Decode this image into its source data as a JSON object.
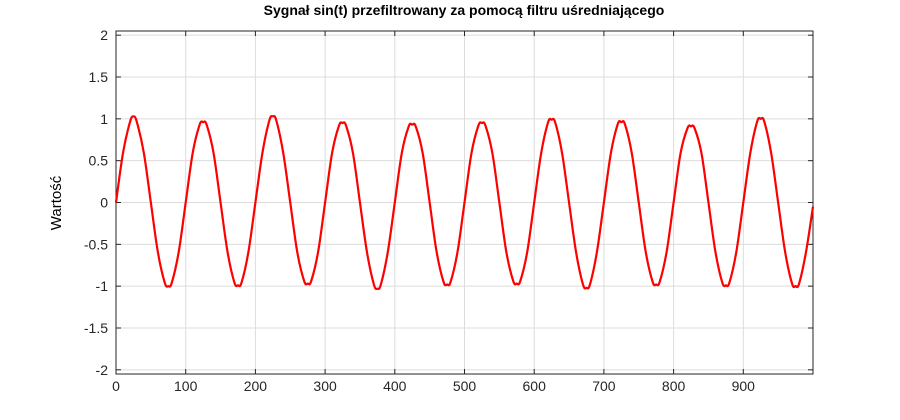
{
  "chart_data": {
    "type": "line",
    "title": "Sygnał sin(t) przefiltrowany za pomocą filtru uśredniającego",
    "xlabel": "",
    "ylabel": "Wartość",
    "xlim": [
      0,
      1000
    ],
    "ylim": [
      -2.05,
      2.05
    ],
    "xticks": [
      0,
      100,
      200,
      300,
      400,
      500,
      600,
      700,
      800,
      900
    ],
    "xtick_labels": [
      "0",
      "100",
      "200",
      "300",
      "400",
      "500",
      "600",
      "700",
      "800",
      "900"
    ],
    "yticks": [
      2,
      1.5,
      1,
      0.5,
      0,
      -0.5,
      -1,
      -1.5,
      -2
    ],
    "ytick_labels": [
      "2",
      "1.5",
      "1",
      "0.5",
      "0",
      "-0.5",
      "-1",
      "-1.5",
      "-2"
    ],
    "grid": true,
    "legend": null,
    "line_color": "#ff0000",
    "series": [
      {
        "x": [
          0,
          10,
          20,
          25,
          30,
          40,
          50,
          60,
          70,
          75,
          80,
          90,
          100,
          110,
          120,
          125,
          130,
          140,
          150,
          160,
          170,
          175,
          180,
          190,
          200,
          210,
          220,
          225,
          230,
          240,
          250,
          260,
          270,
          275,
          280,
          290,
          300,
          310,
          320,
          325,
          330,
          340,
          350,
          360,
          370,
          375,
          380,
          390,
          400,
          410,
          420,
          425,
          430,
          440,
          450,
          460,
          470,
          475,
          480,
          490,
          500,
          510,
          520,
          525,
          530,
          540,
          550,
          560,
          570,
          575,
          580,
          590,
          600,
          610,
          620,
          625,
          630,
          640,
          650,
          660,
          670,
          675,
          680,
          690,
          700,
          710,
          720,
          725,
          730,
          740,
          750,
          760,
          770,
          775,
          780,
          790,
          800,
          810,
          820,
          825,
          830,
          840,
          850,
          860,
          870,
          875,
          880,
          890,
          900,
          910,
          920,
          925,
          930,
          940,
          950,
          960,
          970,
          975,
          980,
          990,
          1000
        ],
        "y": [
          0,
          0.59,
          0.96,
          1.03,
          0.96,
          0.59,
          0,
          -0.59,
          -0.96,
          -1.0,
          -0.96,
          -0.59,
          0,
          0.59,
          0.93,
          0.96,
          0.93,
          0.59,
          0,
          -0.59,
          -0.96,
          -0.99,
          -0.96,
          -0.59,
          0,
          0.59,
          0.98,
          1.03,
          0.98,
          0.59,
          0,
          -0.59,
          -0.94,
          -0.97,
          -0.94,
          -0.59,
          0,
          0.59,
          0.92,
          0.95,
          0.92,
          0.59,
          0,
          -0.59,
          -0.98,
          -1.03,
          -0.98,
          -0.59,
          0,
          0.59,
          0.91,
          0.93,
          0.91,
          0.59,
          0,
          -0.59,
          -0.95,
          -0.98,
          -0.95,
          -0.59,
          0,
          0.59,
          0.92,
          0.95,
          0.92,
          0.59,
          0,
          -0.59,
          -0.94,
          -0.97,
          -0.94,
          -0.59,
          0,
          0.59,
          0.96,
          0.99,
          0.96,
          0.59,
          0,
          -0.59,
          -0.98,
          -1.02,
          -0.98,
          -0.59,
          0,
          0.59,
          0.94,
          0.96,
          0.94,
          0.59,
          0,
          -0.59,
          -0.95,
          -0.98,
          -0.95,
          -0.59,
          0,
          0.59,
          0.89,
          0.91,
          0.89,
          0.59,
          0,
          -0.59,
          -0.96,
          -0.99,
          -0.96,
          -0.59,
          0,
          0.59,
          0.97,
          1.0,
          0.97,
          0.59,
          0,
          -0.59,
          -0.97,
          -1.0,
          -0.97,
          -0.59,
          -0.05
        ]
      }
    ]
  }
}
